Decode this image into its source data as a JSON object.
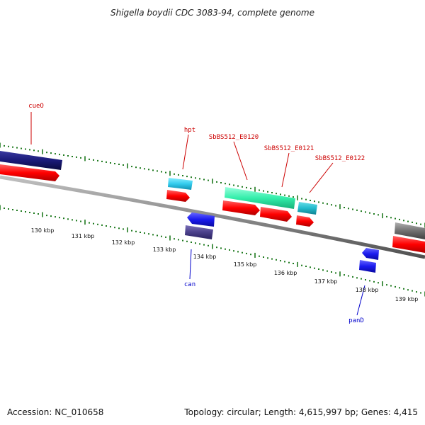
{
  "title": "Shigella boydii CDC 3083-94, complete genome",
  "footer": {
    "accession": "Accession: NC_010658",
    "summary": "Topology: circular; Length: 4,615,997 bp; Genes: 4,415"
  },
  "ruler_labels": [
    "130 kbp",
    "131 kbp",
    "132 kbp",
    "133 kbp",
    "134 kbp",
    "135 kbp",
    "136 kbp",
    "137 kbp",
    "138 kbp",
    "139 kbp"
  ],
  "gene_labels": [
    {
      "text": "cueO",
      "color": "#cc0000"
    },
    {
      "text": "hpt",
      "color": "#cc0000"
    },
    {
      "text": "SbBS512_E0120",
      "color": "#cc0000"
    },
    {
      "text": "SbBS512_E0121",
      "color": "#cc0000"
    },
    {
      "text": "SbBS512_E0122",
      "color": "#cc0000"
    },
    {
      "text": "can",
      "color": "#0000cc"
    },
    {
      "text": "panD",
      "color": "#0000cc"
    }
  ],
  "colors": {
    "backbone": "#8a8a8a",
    "tick": "#1f7a1f",
    "cds_red": "#ff0000",
    "navy": "#1a1a78",
    "cyan": "#33ccee",
    "teal": "#22bbcc",
    "green": "#33eeaa",
    "blue": "#1a1aee",
    "slate": "#4a3f8a",
    "gray": "#707070"
  }
}
